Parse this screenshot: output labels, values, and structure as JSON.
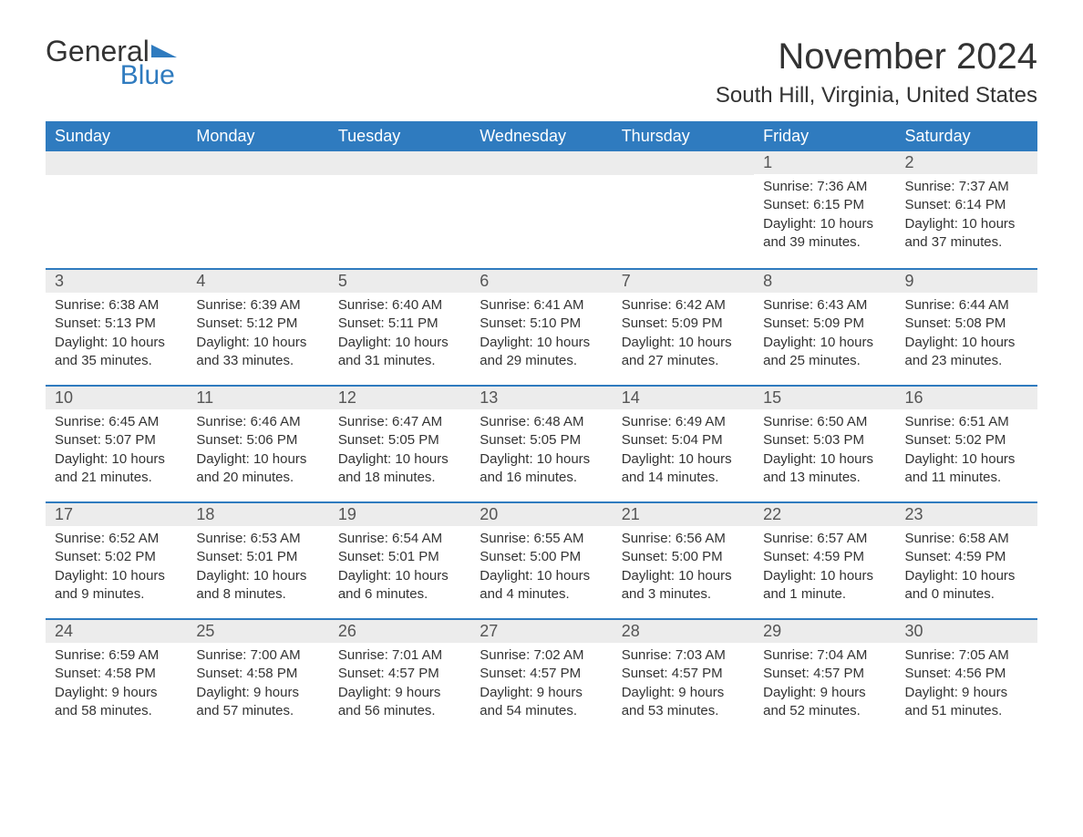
{
  "logo": {
    "text_a": "General",
    "text_b": "Blue",
    "triangle_color": "#2f7bbf"
  },
  "header": {
    "month_title": "November 2024",
    "location": "South Hill, Virginia, United States"
  },
  "colors": {
    "header_bg": "#2f7bbf",
    "header_text": "#ffffff",
    "row_divider": "#2f7bbf",
    "daynum_bg": "#ececec",
    "text": "#333333"
  },
  "weekdays": [
    "Sunday",
    "Monday",
    "Tuesday",
    "Wednesday",
    "Thursday",
    "Friday",
    "Saturday"
  ],
  "weeks": [
    [
      null,
      null,
      null,
      null,
      null,
      {
        "num": "1",
        "sunrise": "Sunrise: 7:36 AM",
        "sunset": "Sunset: 6:15 PM",
        "daylight1": "Daylight: 10 hours",
        "daylight2": "and 39 minutes."
      },
      {
        "num": "2",
        "sunrise": "Sunrise: 7:37 AM",
        "sunset": "Sunset: 6:14 PM",
        "daylight1": "Daylight: 10 hours",
        "daylight2": "and 37 minutes."
      }
    ],
    [
      {
        "num": "3",
        "sunrise": "Sunrise: 6:38 AM",
        "sunset": "Sunset: 5:13 PM",
        "daylight1": "Daylight: 10 hours",
        "daylight2": "and 35 minutes."
      },
      {
        "num": "4",
        "sunrise": "Sunrise: 6:39 AM",
        "sunset": "Sunset: 5:12 PM",
        "daylight1": "Daylight: 10 hours",
        "daylight2": "and 33 minutes."
      },
      {
        "num": "5",
        "sunrise": "Sunrise: 6:40 AM",
        "sunset": "Sunset: 5:11 PM",
        "daylight1": "Daylight: 10 hours",
        "daylight2": "and 31 minutes."
      },
      {
        "num": "6",
        "sunrise": "Sunrise: 6:41 AM",
        "sunset": "Sunset: 5:10 PM",
        "daylight1": "Daylight: 10 hours",
        "daylight2": "and 29 minutes."
      },
      {
        "num": "7",
        "sunrise": "Sunrise: 6:42 AM",
        "sunset": "Sunset: 5:09 PM",
        "daylight1": "Daylight: 10 hours",
        "daylight2": "and 27 minutes."
      },
      {
        "num": "8",
        "sunrise": "Sunrise: 6:43 AM",
        "sunset": "Sunset: 5:09 PM",
        "daylight1": "Daylight: 10 hours",
        "daylight2": "and 25 minutes."
      },
      {
        "num": "9",
        "sunrise": "Sunrise: 6:44 AM",
        "sunset": "Sunset: 5:08 PM",
        "daylight1": "Daylight: 10 hours",
        "daylight2": "and 23 minutes."
      }
    ],
    [
      {
        "num": "10",
        "sunrise": "Sunrise: 6:45 AM",
        "sunset": "Sunset: 5:07 PM",
        "daylight1": "Daylight: 10 hours",
        "daylight2": "and 21 minutes."
      },
      {
        "num": "11",
        "sunrise": "Sunrise: 6:46 AM",
        "sunset": "Sunset: 5:06 PM",
        "daylight1": "Daylight: 10 hours",
        "daylight2": "and 20 minutes."
      },
      {
        "num": "12",
        "sunrise": "Sunrise: 6:47 AM",
        "sunset": "Sunset: 5:05 PM",
        "daylight1": "Daylight: 10 hours",
        "daylight2": "and 18 minutes."
      },
      {
        "num": "13",
        "sunrise": "Sunrise: 6:48 AM",
        "sunset": "Sunset: 5:05 PM",
        "daylight1": "Daylight: 10 hours",
        "daylight2": "and 16 minutes."
      },
      {
        "num": "14",
        "sunrise": "Sunrise: 6:49 AM",
        "sunset": "Sunset: 5:04 PM",
        "daylight1": "Daylight: 10 hours",
        "daylight2": "and 14 minutes."
      },
      {
        "num": "15",
        "sunrise": "Sunrise: 6:50 AM",
        "sunset": "Sunset: 5:03 PM",
        "daylight1": "Daylight: 10 hours",
        "daylight2": "and 13 minutes."
      },
      {
        "num": "16",
        "sunrise": "Sunrise: 6:51 AM",
        "sunset": "Sunset: 5:02 PM",
        "daylight1": "Daylight: 10 hours",
        "daylight2": "and 11 minutes."
      }
    ],
    [
      {
        "num": "17",
        "sunrise": "Sunrise: 6:52 AM",
        "sunset": "Sunset: 5:02 PM",
        "daylight1": "Daylight: 10 hours",
        "daylight2": "and 9 minutes."
      },
      {
        "num": "18",
        "sunrise": "Sunrise: 6:53 AM",
        "sunset": "Sunset: 5:01 PM",
        "daylight1": "Daylight: 10 hours",
        "daylight2": "and 8 minutes."
      },
      {
        "num": "19",
        "sunrise": "Sunrise: 6:54 AM",
        "sunset": "Sunset: 5:01 PM",
        "daylight1": "Daylight: 10 hours",
        "daylight2": "and 6 minutes."
      },
      {
        "num": "20",
        "sunrise": "Sunrise: 6:55 AM",
        "sunset": "Sunset: 5:00 PM",
        "daylight1": "Daylight: 10 hours",
        "daylight2": "and 4 minutes."
      },
      {
        "num": "21",
        "sunrise": "Sunrise: 6:56 AM",
        "sunset": "Sunset: 5:00 PM",
        "daylight1": "Daylight: 10 hours",
        "daylight2": "and 3 minutes."
      },
      {
        "num": "22",
        "sunrise": "Sunrise: 6:57 AM",
        "sunset": "Sunset: 4:59 PM",
        "daylight1": "Daylight: 10 hours",
        "daylight2": "and 1 minute."
      },
      {
        "num": "23",
        "sunrise": "Sunrise: 6:58 AM",
        "sunset": "Sunset: 4:59 PM",
        "daylight1": "Daylight: 10 hours",
        "daylight2": "and 0 minutes."
      }
    ],
    [
      {
        "num": "24",
        "sunrise": "Sunrise: 6:59 AM",
        "sunset": "Sunset: 4:58 PM",
        "daylight1": "Daylight: 9 hours",
        "daylight2": "and 58 minutes."
      },
      {
        "num": "25",
        "sunrise": "Sunrise: 7:00 AM",
        "sunset": "Sunset: 4:58 PM",
        "daylight1": "Daylight: 9 hours",
        "daylight2": "and 57 minutes."
      },
      {
        "num": "26",
        "sunrise": "Sunrise: 7:01 AM",
        "sunset": "Sunset: 4:57 PM",
        "daylight1": "Daylight: 9 hours",
        "daylight2": "and 56 minutes."
      },
      {
        "num": "27",
        "sunrise": "Sunrise: 7:02 AM",
        "sunset": "Sunset: 4:57 PM",
        "daylight1": "Daylight: 9 hours",
        "daylight2": "and 54 minutes."
      },
      {
        "num": "28",
        "sunrise": "Sunrise: 7:03 AM",
        "sunset": "Sunset: 4:57 PM",
        "daylight1": "Daylight: 9 hours",
        "daylight2": "and 53 minutes."
      },
      {
        "num": "29",
        "sunrise": "Sunrise: 7:04 AM",
        "sunset": "Sunset: 4:57 PM",
        "daylight1": "Daylight: 9 hours",
        "daylight2": "and 52 minutes."
      },
      {
        "num": "30",
        "sunrise": "Sunrise: 7:05 AM",
        "sunset": "Sunset: 4:56 PM",
        "daylight1": "Daylight: 9 hours",
        "daylight2": "and 51 minutes."
      }
    ]
  ]
}
